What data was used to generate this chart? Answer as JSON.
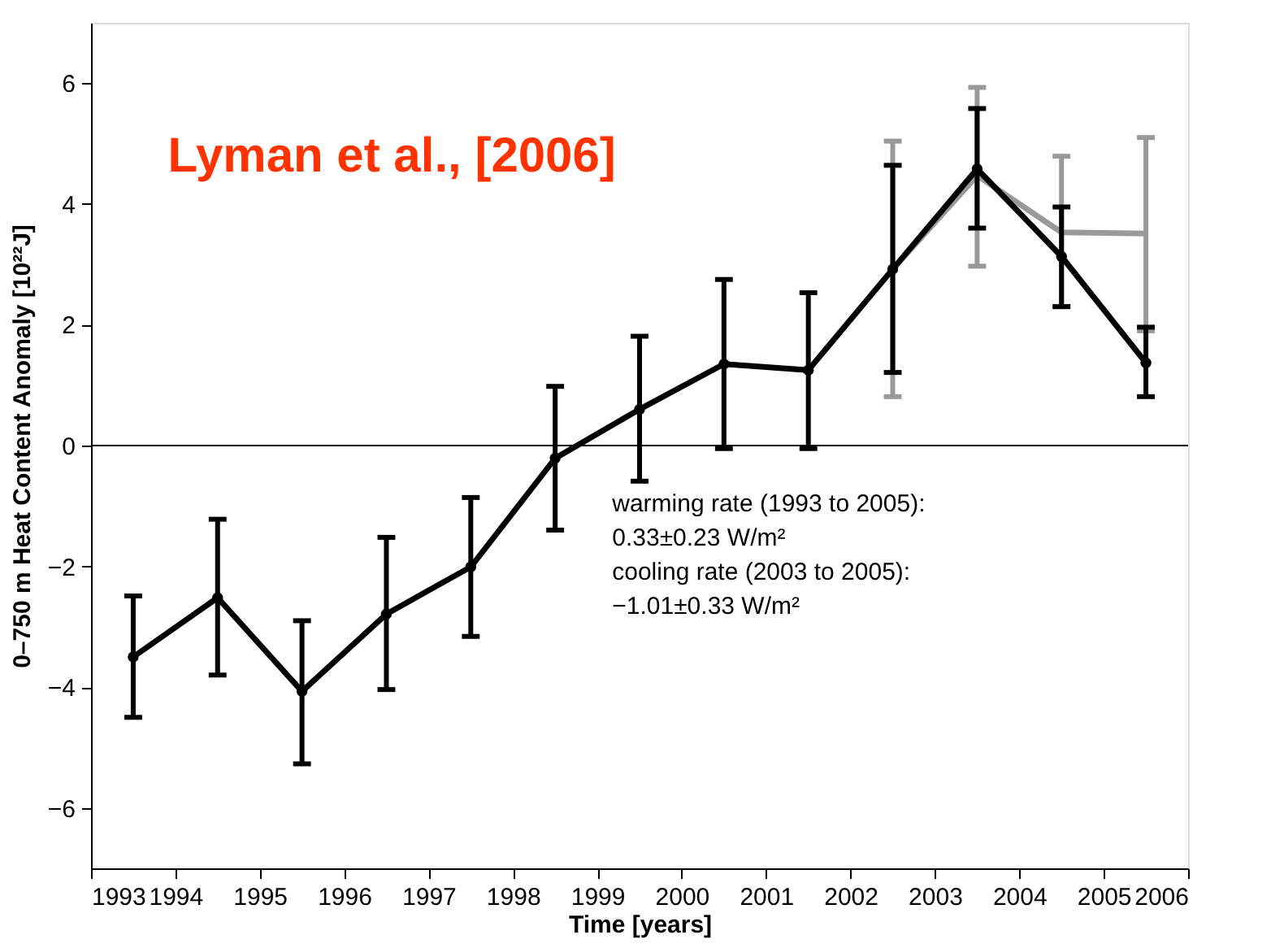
{
  "chart_data": {
    "type": "line",
    "title": "Lyman et al., [2006]",
    "xlabel": "Time [years]",
    "ylabel": "0–750 m Heat Content Anomaly [10²²J]",
    "x": [
      1993.5,
      1994.5,
      1995.5,
      1996.5,
      1997.5,
      1998.5,
      1999.5,
      2000.5,
      2001.5,
      2002.5,
      2003.5,
      2004.5,
      2005.5
    ],
    "xlim": [
      1993,
      2006
    ],
    "xticks": [
      1993,
      1994,
      1995,
      1996,
      1997,
      1998,
      1999,
      2000,
      2001,
      2002,
      2003,
      2004,
      2005,
      2006
    ],
    "ylim": [
      -7,
      7
    ],
    "yticks": [
      -6,
      -4,
      -2,
      0,
      2,
      4,
      6
    ],
    "series": [
      {
        "color": "#999999",
        "marker": "none",
        "x": [
          2002.5,
          2003.5,
          2004.5,
          2005.5
        ],
        "values": [
          2.92,
          4.47,
          3.53,
          3.51
        ],
        "errors": [
          [
            0.81,
            5.04
          ],
          [
            2.97,
            5.93
          ],
          [
            2.3,
            4.79
          ],
          [
            1.9,
            5.1
          ]
        ]
      },
      {
        "color": "#000000",
        "marker": "circle",
        "values": [
          -3.5,
          -2.52,
          -4.07,
          -2.79,
          -2.01,
          -0.21,
          0.6,
          1.35,
          1.25,
          2.92,
          4.58,
          3.13,
          1.37
        ],
        "errors": [
          [
            -4.5,
            -2.49
          ],
          [
            -3.8,
            -1.22
          ],
          [
            -5.27,
            -2.9
          ],
          [
            -4.04,
            -1.52
          ],
          [
            -3.16,
            -0.86
          ],
          [
            -1.4,
            0.98
          ],
          [
            -0.59,
            1.81
          ],
          [
            -0.05,
            2.75
          ],
          [
            -0.05,
            2.53
          ],
          [
            1.21,
            4.64
          ],
          [
            3.6,
            5.58
          ],
          [
            2.3,
            3.95
          ],
          [
            0.81,
            1.96
          ]
        ]
      }
    ],
    "ref_lines": [
      {
        "axis": "y",
        "value": 0,
        "color": "#000000"
      }
    ],
    "annotations": [
      "warming rate (1993 to 2005):",
      "0.33±0.23 W/m²",
      "cooling rate (2003 to 2005):",
      "−1.01±0.33 W/m²"
    ],
    "grid": false,
    "line_style": "solid"
  }
}
